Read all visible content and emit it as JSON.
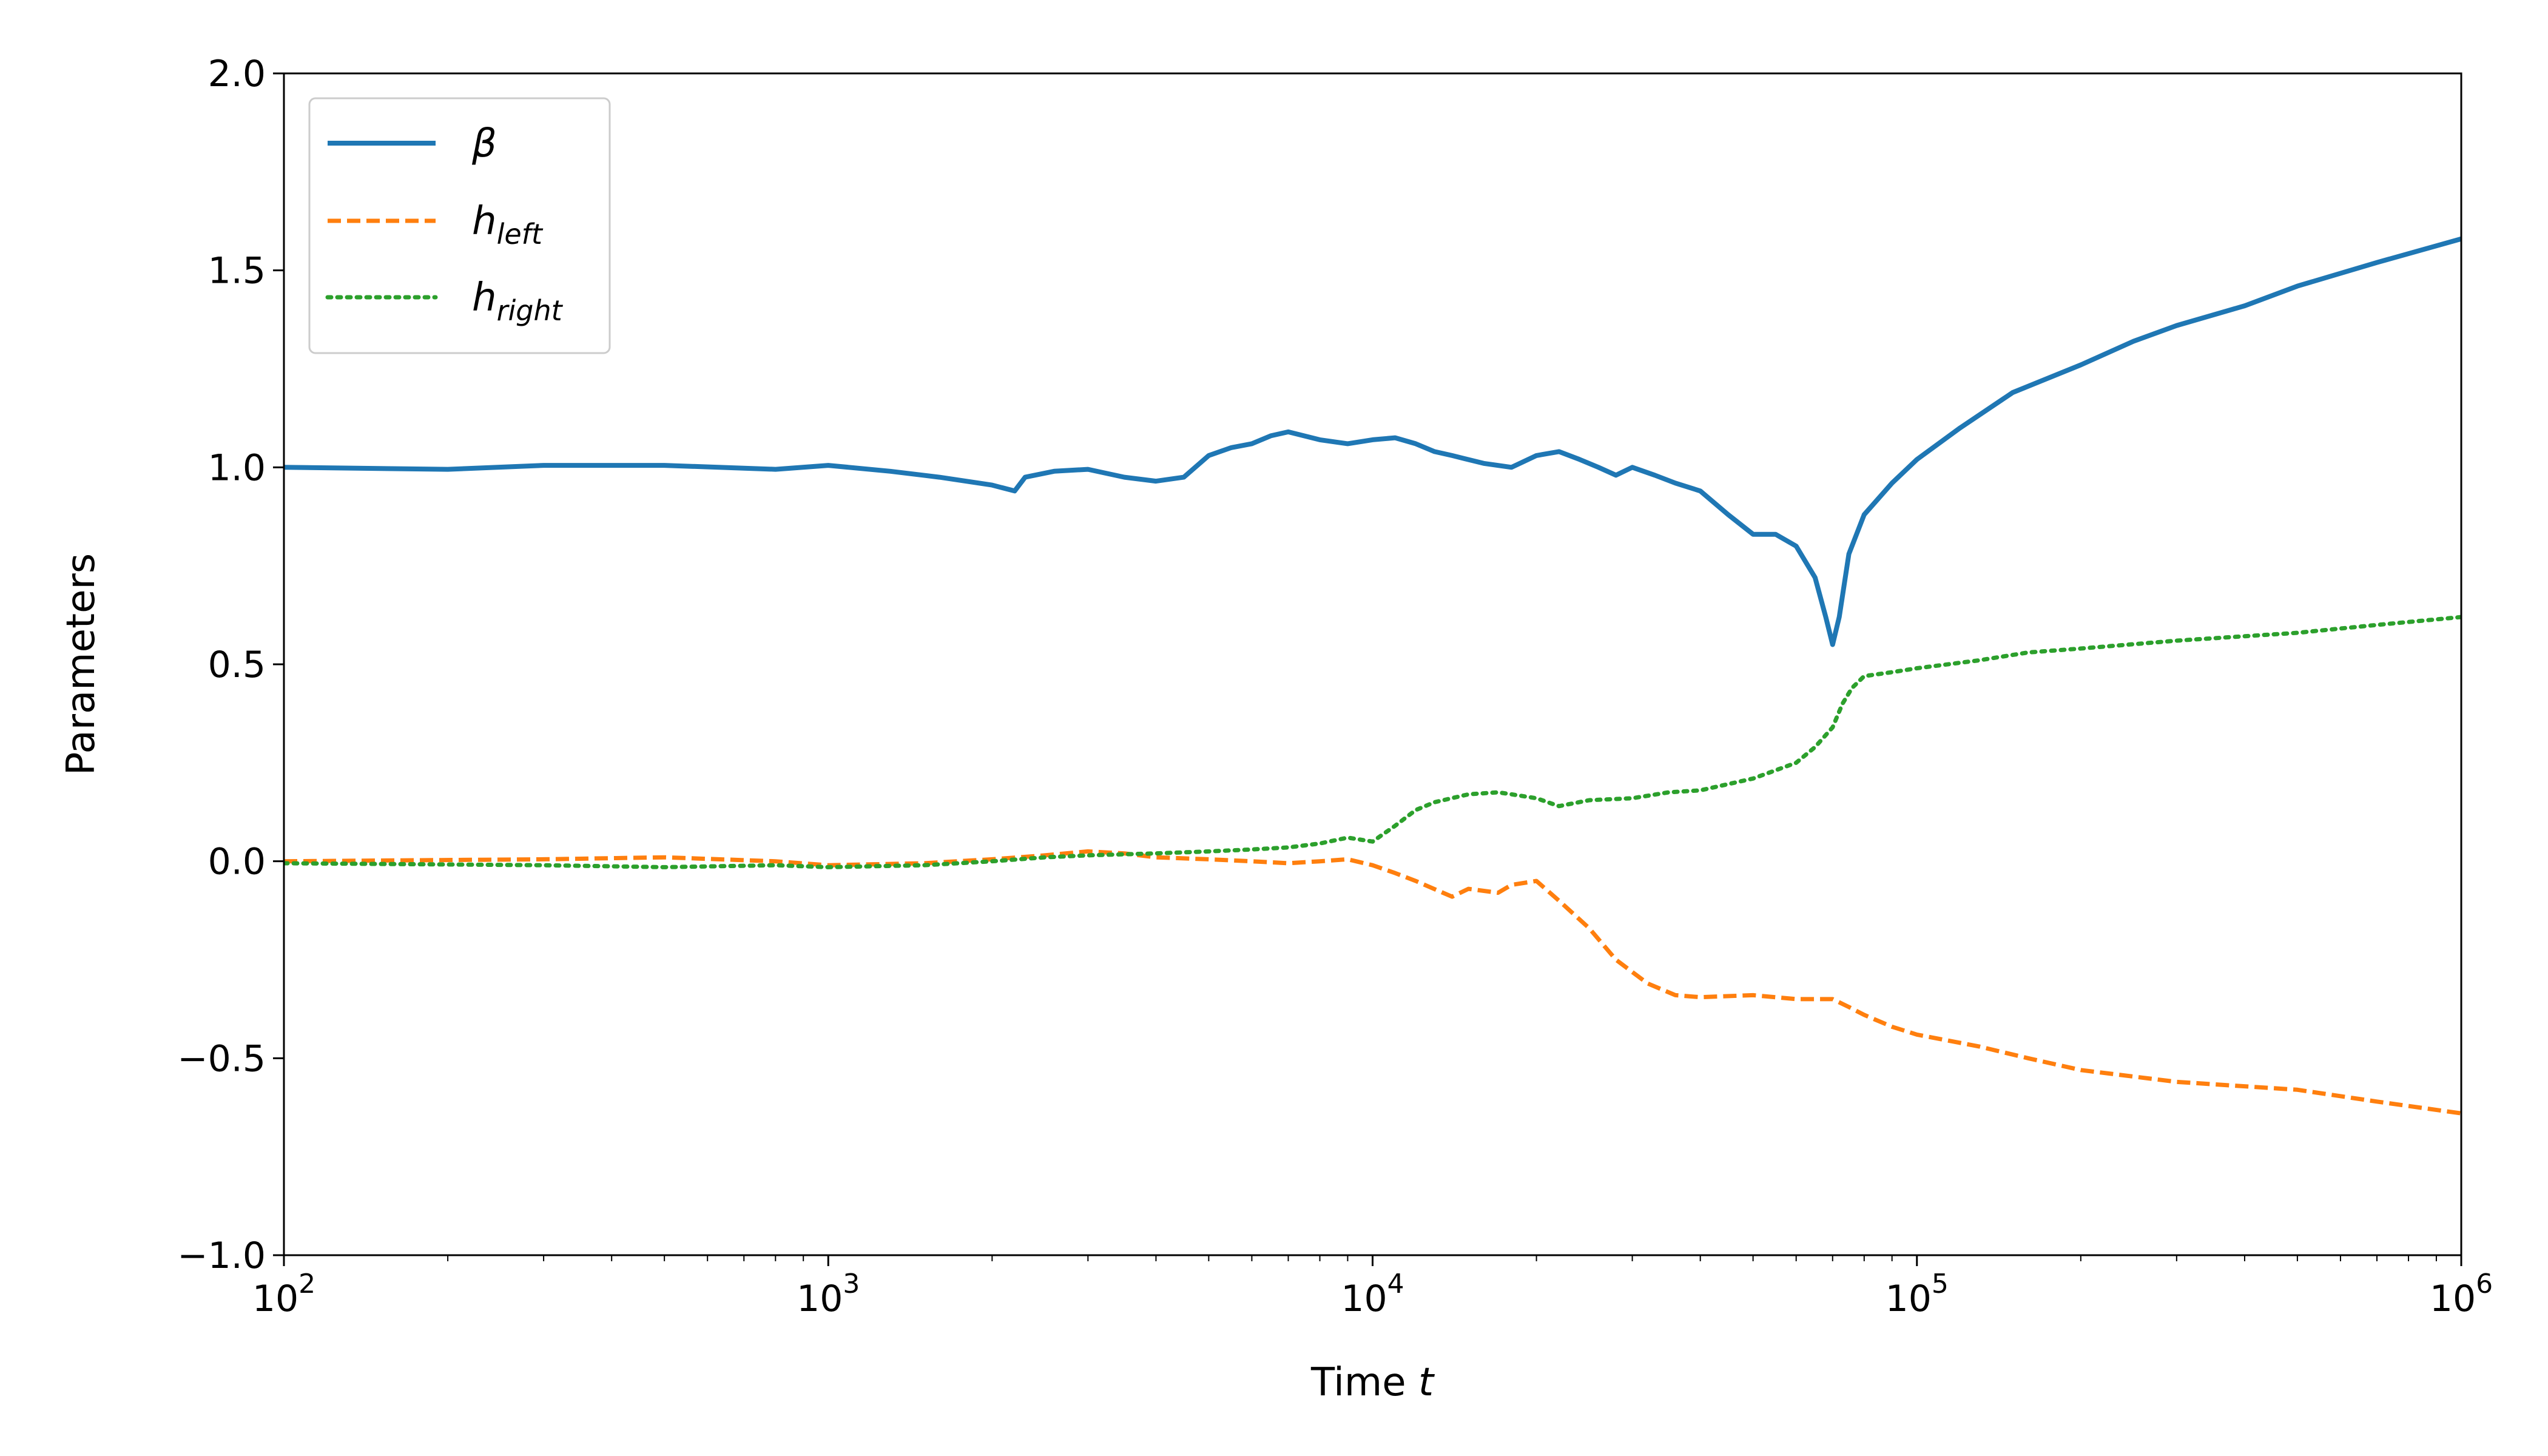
{
  "chart_data": {
    "type": "line",
    "xlabel": "Time",
    "xlabel_var": "t",
    "ylabel": "Parameters",
    "xscale": "log",
    "xlim": [
      100,
      1000000
    ],
    "ylim": [
      -1.0,
      2.0
    ],
    "x_ticks": [
      {
        "value": 100,
        "base": "10",
        "exp": "2"
      },
      {
        "value": 1000,
        "base": "10",
        "exp": "3"
      },
      {
        "value": 10000,
        "base": "10",
        "exp": "4"
      },
      {
        "value": 100000,
        "base": "10",
        "exp": "5"
      },
      {
        "value": 1000000,
        "base": "10",
        "exp": "6"
      }
    ],
    "y_ticks": [
      {
        "value": -1.0,
        "label": "−1.0"
      },
      {
        "value": -0.5,
        "label": "−0.5"
      },
      {
        "value": 0.0,
        "label": "0.0"
      },
      {
        "value": 0.5,
        "label": "0.5"
      },
      {
        "value": 1.0,
        "label": "1.0"
      },
      {
        "value": 1.5,
        "label": "1.5"
      },
      {
        "value": 2.0,
        "label": "2.0"
      }
    ],
    "grid": false,
    "legend_position": "top-left",
    "series": [
      {
        "symbol": "β",
        "subscript": "",
        "color": "#1f77b4",
        "style": "solid",
        "x": [
          100,
          200,
          300,
          500,
          800,
          1000,
          1300,
          1600,
          2000,
          2200,
          2300,
          2600,
          3000,
          3500,
          4000,
          4500,
          5000,
          5500,
          6000,
          6500,
          7000,
          8000,
          9000,
          10000,
          11000,
          12000,
          13000,
          14000,
          16000,
          18000,
          20000,
          22000,
          24000,
          26000,
          28000,
          30000,
          33000,
          36000,
          40000,
          45000,
          50000,
          55000,
          60000,
          65000,
          68000,
          70000,
          72000,
          75000,
          80000,
          90000,
          100000,
          120000,
          150000,
          200000,
          250000,
          300000,
          400000,
          500000,
          700000,
          1000000
        ],
        "y": [
          1.0,
          0.995,
          1.005,
          1.005,
          0.995,
          1.005,
          0.99,
          0.975,
          0.955,
          0.94,
          0.975,
          0.99,
          0.995,
          0.975,
          0.965,
          0.975,
          1.03,
          1.05,
          1.06,
          1.08,
          1.09,
          1.07,
          1.06,
          1.07,
          1.075,
          1.06,
          1.04,
          1.03,
          1.01,
          1.0,
          1.03,
          1.04,
          1.02,
          1.0,
          0.98,
          1.0,
          0.98,
          0.96,
          0.94,
          0.88,
          0.83,
          0.83,
          0.8,
          0.72,
          0.62,
          0.55,
          0.62,
          0.78,
          0.88,
          0.96,
          1.02,
          1.1,
          1.19,
          1.26,
          1.32,
          1.36,
          1.41,
          1.46,
          1.52,
          1.58
        ]
      },
      {
        "symbol": "h",
        "subscript": "left",
        "color": "#ff7f0e",
        "style": "dashed",
        "x": [
          100,
          300,
          500,
          800,
          1000,
          1500,
          2000,
          2500,
          3000,
          3500,
          4000,
          5000,
          6000,
          7000,
          8000,
          9000,
          10000,
          11000,
          12000,
          14000,
          15000,
          17000,
          18000,
          20000,
          22000,
          25000,
          28000,
          32000,
          36000,
          40000,
          50000,
          60000,
          70000,
          75000,
          80000,
          90000,
          100000,
          130000,
          160000,
          200000,
          300000,
          500000,
          700000,
          1000000
        ],
        "y": [
          0.0,
          0.005,
          0.01,
          0.0,
          -0.01,
          -0.005,
          0.005,
          0.015,
          0.025,
          0.02,
          0.01,
          0.005,
          0.0,
          -0.005,
          0.0,
          0.005,
          -0.01,
          -0.03,
          -0.05,
          -0.09,
          -0.07,
          -0.08,
          -0.06,
          -0.05,
          -0.1,
          -0.17,
          -0.25,
          -0.31,
          -0.34,
          -0.345,
          -0.34,
          -0.35,
          -0.35,
          -0.37,
          -0.39,
          -0.42,
          -0.44,
          -0.47,
          -0.5,
          -0.53,
          -0.56,
          -0.58,
          -0.61,
          -0.64
        ]
      },
      {
        "symbol": "h",
        "subscript": "right",
        "color": "#2ca02c",
        "style": "dotted",
        "x": [
          100,
          300,
          500,
          800,
          1000,
          1500,
          2000,
          2500,
          3000,
          4000,
          5000,
          6000,
          7000,
          8000,
          9000,
          10000,
          11000,
          12000,
          13000,
          15000,
          17000,
          18000,
          20000,
          22000,
          25000,
          30000,
          35000,
          40000,
          50000,
          60000,
          65000,
          70000,
          73000,
          76000,
          80000,
          90000,
          100000,
          130000,
          160000,
          200000,
          300000,
          500000,
          700000,
          1000000
        ],
        "y": [
          -0.005,
          -0.01,
          -0.015,
          -0.01,
          -0.015,
          -0.01,
          0.0,
          0.01,
          0.015,
          0.02,
          0.025,
          0.03,
          0.035,
          0.045,
          0.06,
          0.05,
          0.09,
          0.13,
          0.15,
          0.17,
          0.175,
          0.17,
          0.16,
          0.14,
          0.155,
          0.16,
          0.175,
          0.18,
          0.21,
          0.25,
          0.29,
          0.34,
          0.4,
          0.44,
          0.47,
          0.48,
          0.49,
          0.51,
          0.53,
          0.54,
          0.56,
          0.58,
          0.6,
          0.62
        ]
      }
    ]
  }
}
